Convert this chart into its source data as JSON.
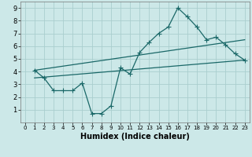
{
  "xlabel": "Humidex (Indice chaleur)",
  "ylabel": "",
  "bg_color": "#cce8e8",
  "grid_color": "#aacece",
  "line_color": "#1a6868",
  "xlim": [
    -0.5,
    23.5
  ],
  "ylim": [
    0,
    9.5
  ],
  "xticks": [
    0,
    1,
    2,
    3,
    4,
    5,
    6,
    7,
    8,
    9,
    10,
    11,
    12,
    13,
    14,
    15,
    16,
    17,
    18,
    19,
    20,
    21,
    22,
    23
  ],
  "yticks": [
    1,
    2,
    3,
    4,
    5,
    6,
    7,
    8,
    9
  ],
  "line1_x": [
    1,
    2,
    3,
    4,
    5,
    6,
    7,
    8,
    9,
    10,
    11,
    12,
    13,
    14,
    15,
    16,
    17,
    18,
    19,
    20,
    21,
    22,
    23
  ],
  "line1_y": [
    4.1,
    3.5,
    2.5,
    2.5,
    2.5,
    3.1,
    0.7,
    0.7,
    1.3,
    4.3,
    3.8,
    5.5,
    6.3,
    7.0,
    7.5,
    9.0,
    8.3,
    7.5,
    6.5,
    6.7,
    6.1,
    5.4,
    4.9
  ],
  "line2_x": [
    1,
    23
  ],
  "line2_y": [
    3.5,
    4.9
  ],
  "line3_x": [
    1,
    23
  ],
  "line3_y": [
    4.1,
    6.5
  ],
  "xlabel_fontsize": 7,
  "tick_fontsize": 5,
  "line_width": 0.9,
  "marker_size": 3
}
